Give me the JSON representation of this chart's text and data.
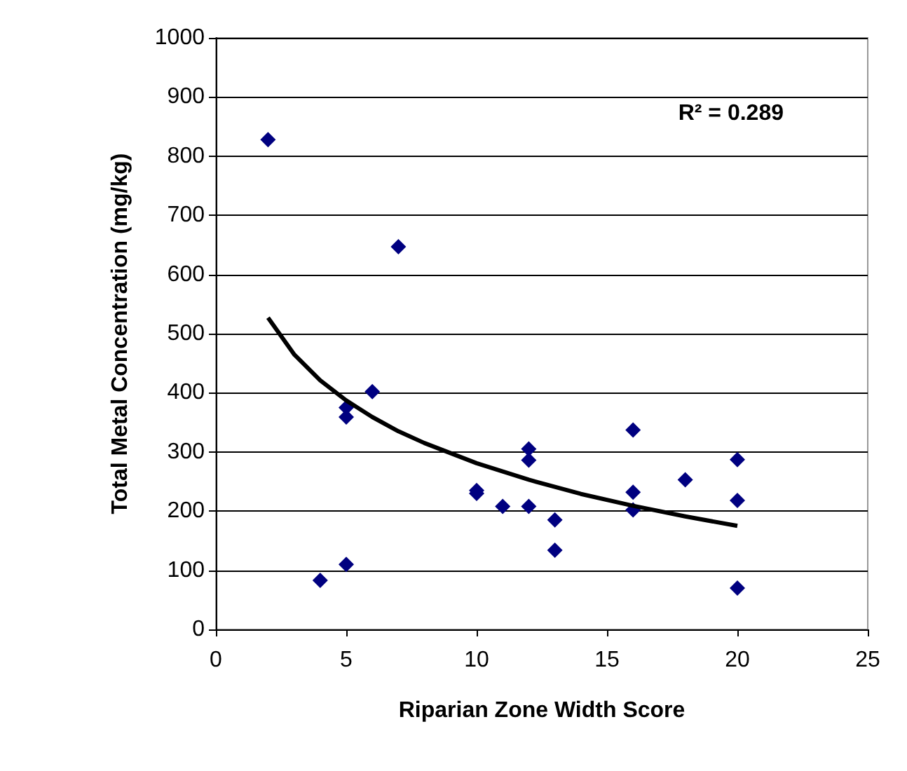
{
  "chart_data": {
    "type": "scatter",
    "xlabel": "Riparian Zone Width Score",
    "ylabel": "Total Metal Concentration (mg/kg)",
    "annotations": [
      "R² = 0.289"
    ],
    "xlim": [
      0,
      25
    ],
    "xticks": [
      0,
      5,
      10,
      15,
      20,
      25
    ],
    "ylim": [
      0,
      1000
    ],
    "yticks": [
      0,
      100,
      200,
      300,
      400,
      500,
      600,
      700,
      800,
      900,
      1000
    ],
    "grid": "y",
    "series": [
      {
        "color": "#000080",
        "marker": "diamond",
        "x": [
          2,
          4,
          5,
          5,
          5,
          6,
          7,
          10,
          10,
          11,
          12,
          12,
          12,
          13,
          13,
          16,
          16,
          16,
          18,
          20,
          20,
          20
        ],
        "values": [
          828,
          83,
          375,
          359,
          110,
          402,
          647,
          235,
          230,
          208,
          305,
          286,
          208,
          185,
          134,
          337,
          232,
          202,
          253,
          287,
          218,
          70
        ]
      },
      {
        "type": "line",
        "color": "#000000",
        "marker": "none",
        "x": [
          2,
          3,
          4,
          5,
          6,
          7,
          8,
          10,
          12,
          14,
          16,
          18,
          20
        ],
        "values": [
          527,
          465,
          421,
          387,
          359,
          335,
          315,
          281,
          253,
          229,
          209,
          191,
          175
        ]
      }
    ]
  }
}
